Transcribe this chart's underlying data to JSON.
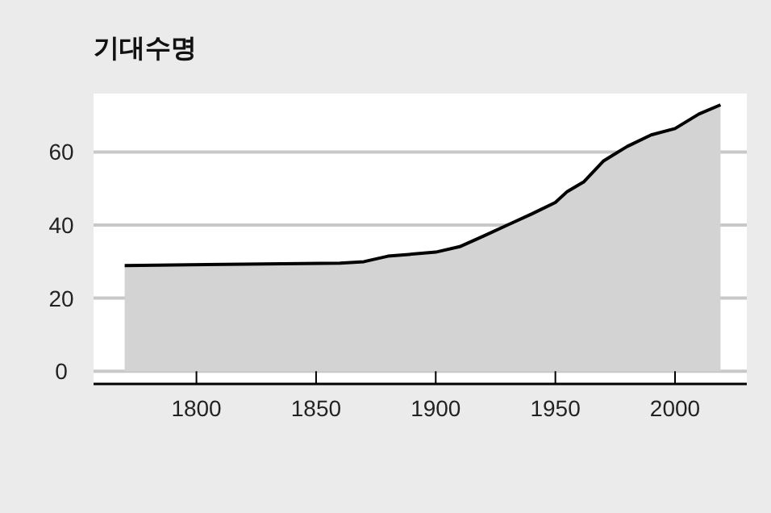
{
  "chart_data": {
    "type": "area",
    "title": "기대수명",
    "x": [
      1770,
      1820,
      1860,
      1870,
      1880,
      1900,
      1910,
      1920,
      1930,
      1940,
      1950,
      1955,
      1962,
      1970,
      1980,
      1990,
      2000,
      2010,
      2019
    ],
    "series": [
      {
        "color": "#d3d3d3",
        "values": [
          28.9,
          29.3,
          29.6,
          30,
          31.5,
          32.6,
          34.1,
          37,
          40,
          43,
          46.2,
          49.2,
          51.9,
          57.5,
          61.5,
          64.7,
          66.4,
          70.4,
          72.9
        ]
      }
    ],
    "xlim": [
      1757,
      2030
    ],
    "ylim": [
      -3.5,
      76
    ],
    "xticks": [
      1800,
      1850,
      1900,
      1950,
      2000
    ],
    "yticks": [
      0,
      20,
      40,
      60
    ],
    "grid": "y"
  }
}
